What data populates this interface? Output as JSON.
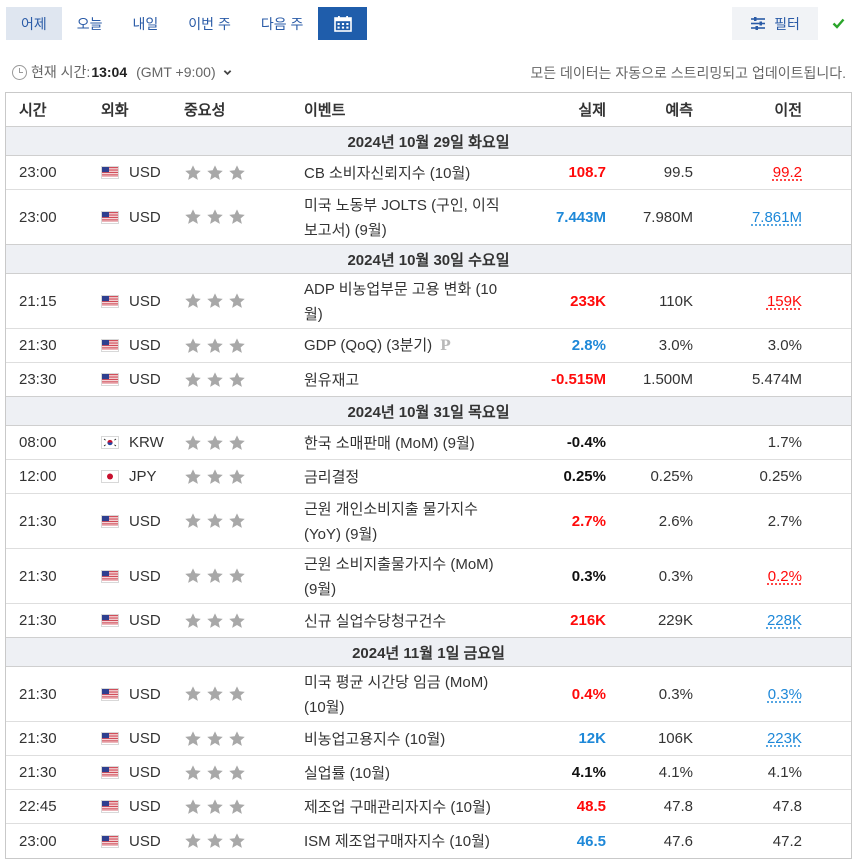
{
  "tabs": [
    {
      "label": "어제",
      "active": true
    },
    {
      "label": "오늘",
      "active": false
    },
    {
      "label": "내일",
      "active": false
    },
    {
      "label": "이번 주",
      "active": false
    },
    {
      "label": "다음 주",
      "active": false
    }
  ],
  "calendar_button": {
    "icon": "calendar-icon"
  },
  "filter_button": {
    "label": "필터",
    "icon": "sliders-icon"
  },
  "confirm_icon": "checkmark-icon",
  "current_time": {
    "label": "현재 시간:",
    "time": "13:04",
    "timezone": "(GMT +9:00)"
  },
  "stream_note": "모든 데이터는 자동으로 스트리밍되고 업데이트됩니다.",
  "columns": {
    "time": "시간",
    "currency": "외화",
    "importance": "중요성",
    "event": "이벤트",
    "actual": "실제",
    "forecast": "예측",
    "previous": "이전"
  },
  "colors": {
    "up": "#ff0a0a",
    "down": "#1e88d8",
    "star_off": "#a8a8a8",
    "active_tab_bg": "#dfe6f0",
    "calendar_bg": "#1f5dab"
  },
  "days": [
    {
      "date": "2024년 10월 29일 화요일",
      "events": [
        {
          "time": "23:00",
          "flag": "us",
          "currency": "USD",
          "lines": [
            "CB 소비자신뢰지수 (10월)"
          ],
          "actual": "108.7",
          "actual_color": "red",
          "forecast": "99.5",
          "previous": "99.2",
          "previous_style": "prev-red"
        },
        {
          "time": "23:00",
          "flag": "us",
          "currency": "USD",
          "lines": [
            "미국 노동부 JOLTS (구인, 이직",
            "보고서) (9월)"
          ],
          "actual": "7.443M",
          "actual_color": "blue",
          "forecast": "7.980M",
          "previous": "7.861M",
          "previous_style": "prev-blue"
        }
      ]
    },
    {
      "date": "2024년 10월 30일 수요일",
      "events": [
        {
          "time": "21:15",
          "flag": "us",
          "currency": "USD",
          "lines": [
            "ADP 비농업부문 고용 변화 (10",
            "월)"
          ],
          "actual": "233K",
          "actual_color": "red",
          "forecast": "110K",
          "previous": "159K",
          "previous_style": "prev-red"
        },
        {
          "time": "21:30",
          "flag": "us",
          "currency": "USD",
          "lines": [
            "GDP (QoQ) (3분기)"
          ],
          "prelim": "P",
          "actual": "2.8%",
          "actual_color": "blue",
          "forecast": "3.0%",
          "previous": "3.0%",
          "previous_style": ""
        },
        {
          "time": "23:30",
          "flag": "us",
          "currency": "USD",
          "lines": [
            "원유재고"
          ],
          "actual": "-0.515M",
          "actual_color": "red",
          "forecast": "1.500M",
          "previous": "5.474M",
          "previous_style": ""
        }
      ]
    },
    {
      "date": "2024년 10월 31일 목요일",
      "events": [
        {
          "time": "08:00",
          "flag": "kr",
          "currency": "KRW",
          "lines": [
            "한국 소매판매 (MoM) (9월)"
          ],
          "actual": "-0.4%",
          "actual_color": "black",
          "forecast": "",
          "previous": "1.7%",
          "previous_style": ""
        },
        {
          "time": "12:00",
          "flag": "jp",
          "currency": "JPY",
          "lines": [
            "금리결정"
          ],
          "actual": "0.25%",
          "actual_color": "black",
          "forecast": "0.25%",
          "previous": "0.25%",
          "previous_style": ""
        },
        {
          "time": "21:30",
          "flag": "us",
          "currency": "USD",
          "lines": [
            "근원 개인소비지출 물가지수",
            "(YoY) (9월)"
          ],
          "actual": "2.7%",
          "actual_color": "red",
          "forecast": "2.6%",
          "previous": "2.7%",
          "previous_style": ""
        },
        {
          "time": "21:30",
          "flag": "us",
          "currency": "USD",
          "lines": [
            "근원 소비지출물가지수 (MoM)",
            "(9월)"
          ],
          "actual": "0.3%",
          "actual_color": "black",
          "forecast": "0.3%",
          "previous": "0.2%",
          "previous_style": "prev-red"
        },
        {
          "time": "21:30",
          "flag": "us",
          "currency": "USD",
          "lines": [
            "신규 실업수당청구건수"
          ],
          "actual": "216K",
          "actual_color": "red",
          "forecast": "229K",
          "previous": "228K",
          "previous_style": "prev-blue"
        }
      ]
    },
    {
      "date": "2024년 11월 1일 금요일",
      "events": [
        {
          "time": "21:30",
          "flag": "us",
          "currency": "USD",
          "lines": [
            "미국 평균 시간당 임금 (MoM)",
            "(10월)"
          ],
          "actual": "0.4%",
          "actual_color": "red",
          "forecast": "0.3%",
          "previous": "0.3%",
          "previous_style": "prev-blue"
        },
        {
          "time": "21:30",
          "flag": "us",
          "currency": "USD",
          "lines": [
            "비농업고용지수 (10월)"
          ],
          "actual": "12K",
          "actual_color": "blue",
          "forecast": "106K",
          "previous": "223K",
          "previous_style": "prev-blue"
        },
        {
          "time": "21:30",
          "flag": "us",
          "currency": "USD",
          "lines": [
            "실업률 (10월)"
          ],
          "actual": "4.1%",
          "actual_color": "black",
          "forecast": "4.1%",
          "previous": "4.1%",
          "previous_style": ""
        },
        {
          "time": "22:45",
          "flag": "us",
          "currency": "USD",
          "lines": [
            "제조업 구매관리자지수 (10월)"
          ],
          "actual": "48.5",
          "actual_color": "red",
          "forecast": "47.8",
          "previous": "47.8",
          "previous_style": ""
        },
        {
          "time": "23:00",
          "flag": "us",
          "currency": "USD",
          "lines": [
            "ISM 제조업구매자지수 (10월)"
          ],
          "actual": "46.5",
          "actual_color": "blue",
          "forecast": "47.6",
          "previous": "47.2",
          "previous_style": ""
        }
      ]
    }
  ]
}
